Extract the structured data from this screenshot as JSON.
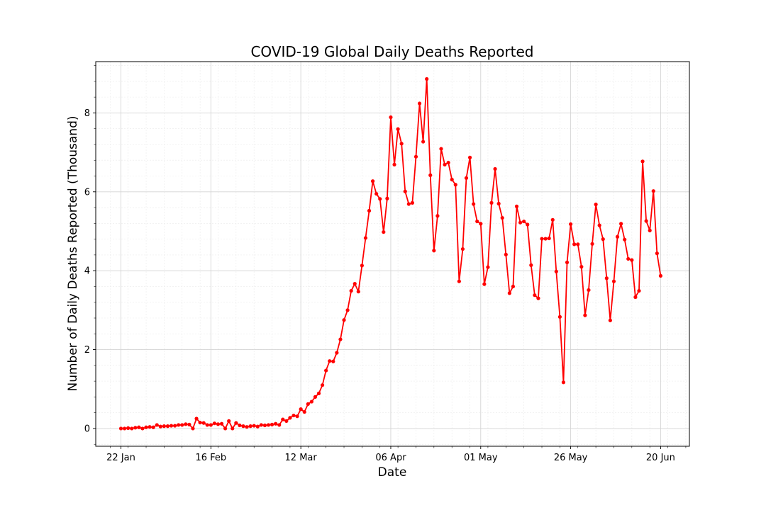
{
  "chart_data": {
    "type": "line",
    "title": "COVID-19 Global Daily Deaths Reported",
    "xlabel": "Date",
    "ylabel": "Number of Daily Deaths Reported (Thousand)",
    "x_start": "2020-01-22",
    "x_ticks": [
      {
        "date": "2020-01-22",
        "label": "22 Jan"
      },
      {
        "date": "2020-02-16",
        "label": "16 Feb"
      },
      {
        "date": "2020-03-12",
        "label": "12 Mar"
      },
      {
        "date": "2020-04-06",
        "label": "06 Apr"
      },
      {
        "date": "2020-05-01",
        "label": "01 May"
      },
      {
        "date": "2020-05-26",
        "label": "26 May"
      },
      {
        "date": "2020-06-20",
        "label": "20 Jun"
      }
    ],
    "y_ticks": [
      0,
      2,
      4,
      6,
      8
    ],
    "xlim": [
      "2020-01-15",
      "2020-06-28"
    ],
    "ylim": [
      -0.45,
      9.3
    ],
    "grid": true,
    "series": [
      {
        "color": "#ff0000",
        "marker": "circle",
        "values": [
          0.0,
          0.0,
          0.01,
          0.0,
          0.02,
          0.03,
          0.0,
          0.03,
          0.04,
          0.03,
          0.09,
          0.05,
          0.06,
          0.06,
          0.07,
          0.07,
          0.09,
          0.09,
          0.11,
          0.1,
          0.0,
          0.25,
          0.15,
          0.14,
          0.09,
          0.09,
          0.13,
          0.11,
          0.12,
          0.0,
          0.19,
          0.0,
          0.14,
          0.08,
          0.06,
          0.04,
          0.06,
          0.07,
          0.05,
          0.09,
          0.08,
          0.09,
          0.1,
          0.12,
          0.09,
          0.23,
          0.19,
          0.27,
          0.33,
          0.31,
          0.49,
          0.42,
          0.62,
          0.68,
          0.8,
          0.89,
          1.1,
          1.47,
          1.71,
          1.7,
          1.92,
          2.26,
          2.75,
          3.0,
          3.49,
          3.67,
          3.47,
          4.13,
          4.83,
          5.52,
          6.27,
          5.95,
          5.82,
          4.98,
          5.83,
          7.89,
          6.69,
          7.59,
          7.22,
          6.01,
          5.69,
          5.72,
          6.89,
          8.24,
          7.27,
          8.86,
          6.42,
          4.51,
          5.39,
          7.09,
          6.69,
          6.74,
          6.31,
          6.18,
          3.73,
          4.55,
          6.35,
          6.87,
          5.69,
          5.25,
          5.19,
          3.66,
          4.09,
          5.72,
          6.58,
          5.7,
          5.34,
          4.41,
          3.43,
          3.6,
          5.63,
          5.22,
          5.25,
          5.17,
          4.14,
          3.38,
          3.3,
          4.81,
          4.81,
          4.82,
          5.29,
          3.98,
          2.83,
          1.17,
          4.21,
          5.18,
          4.67,
          4.67,
          4.1,
          2.87,
          3.51,
          4.68,
          5.68,
          5.15,
          4.8,
          3.81,
          2.74,
          3.73,
          4.86,
          5.19,
          4.79,
          4.3,
          4.27,
          3.33,
          3.49,
          6.77,
          5.26,
          5.02,
          6.02,
          4.44,
          3.87
        ]
      }
    ]
  }
}
